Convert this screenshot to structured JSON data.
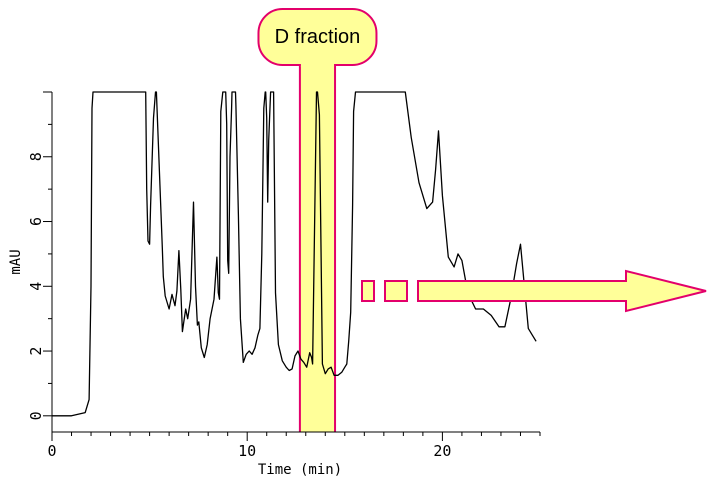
{
  "chart_data": {
    "type": "line",
    "title": "",
    "xlabel": "Time (min)",
    "ylabel": "mAU",
    "xlim": [
      0,
      25
    ],
    "ylim": [
      -0.5,
      10
    ],
    "x_ticks": [
      0,
      10,
      20
    ],
    "y_ticks": [
      0,
      2,
      4,
      6,
      8
    ],
    "x_tick_labels": [
      "0",
      "10",
      "20"
    ],
    "y_tick_labels": [
      "0",
      "2",
      "4",
      "6",
      "8"
    ],
    "grid": false,
    "legend": "none",
    "line_color": "#000000",
    "series": [
      {
        "x": [
          0,
          1.0,
          1.7,
          1.9,
          2.0,
          2.05,
          2.1,
          4.8,
          4.85,
          4.92,
          5.0,
          5.05,
          5.2,
          5.3,
          5.35,
          5.65,
          5.7,
          5.8,
          6.0,
          6.15,
          6.3,
          6.4,
          6.5,
          6.6,
          6.68,
          6.75,
          6.85,
          6.95,
          7.1,
          7.25,
          7.35,
          7.45,
          7.52,
          7.65,
          7.8,
          7.95,
          8.1,
          8.3,
          8.45,
          8.52,
          8.58,
          8.65,
          8.75,
          8.85,
          8.9,
          8.95,
          9.0,
          9.05,
          9.12,
          9.2,
          9.22,
          9.4,
          9.42,
          9.55,
          9.65,
          9.8,
          9.95,
          10.1,
          10.25,
          10.4,
          10.55,
          10.65,
          10.75,
          10.85,
          10.92,
          10.95,
          11.0,
          11.05,
          11.1,
          11.2,
          11.25,
          11.35,
          11.45,
          11.6,
          11.8,
          12.0,
          12.15,
          12.3,
          12.45,
          12.6,
          12.75,
          12.9,
          13.05,
          13.2,
          13.3,
          13.35,
          13.55,
          13.6,
          13.7,
          13.85,
          14.0,
          14.15,
          14.3,
          14.45,
          14.65,
          14.85,
          15.0,
          15.1,
          15.2,
          15.3,
          15.4,
          15.45,
          15.55,
          18.1,
          18.4,
          18.8,
          19.2,
          19.5,
          19.65,
          19.8,
          20.0,
          20.3,
          20.6,
          20.8,
          21.0,
          21.3,
          21.7,
          22.1,
          22.5,
          22.9,
          23.2,
          23.5,
          23.8,
          24.0,
          24.2,
          24.4,
          24.6,
          24.8
        ],
        "y": [
          0,
          0,
          0.1,
          0.5,
          4,
          9.5,
          10,
          10,
          7,
          5.4,
          5.3,
          6.5,
          9.2,
          10,
          10,
          5.2,
          4.3,
          3.7,
          3.3,
          3.75,
          3.4,
          3.85,
          5.1,
          3.9,
          2.6,
          2.9,
          3.3,
          3.0,
          3.6,
          6.6,
          4.0,
          2.8,
          2.9,
          2.1,
          1.8,
          2.2,
          3.0,
          3.6,
          4.9,
          3.8,
          3.6,
          9.4,
          10,
          10,
          10,
          9.0,
          4.8,
          4.4,
          8.0,
          9.5,
          10,
          10,
          9.6,
          6.2,
          3.0,
          1.65,
          1.9,
          2.0,
          1.9,
          2.1,
          2.5,
          2.7,
          5.0,
          9.5,
          10,
          10,
          9.2,
          6.6,
          8.5,
          10,
          10,
          10,
          3.8,
          2.2,
          1.7,
          1.5,
          1.4,
          1.45,
          1.85,
          2.0,
          1.75,
          1.65,
          1.5,
          1.95,
          1.8,
          1.6,
          10,
          10,
          9.3,
          1.6,
          1.3,
          1.45,
          1.5,
          1.25,
          1.25,
          1.35,
          1.5,
          1.6,
          2.3,
          3.2,
          6.5,
          9.4,
          10,
          10,
          8.6,
          7.2,
          6.4,
          6.6,
          7.6,
          8.8,
          6.8,
          4.9,
          4.6,
          5.0,
          4.8,
          3.8,
          3.3,
          3.3,
          3.1,
          2.75,
          2.75,
          3.6,
          4.7,
          5.3,
          4.0,
          2.7,
          2.5,
          2.3
        ]
      }
    ],
    "highlight": {
      "label": "D fraction",
      "x_start": 12.7,
      "x_end": 14.5,
      "fill": "#ffff99",
      "border": "#e3006b"
    },
    "arrow": {
      "fill": "#ffff99",
      "border": "#e3006b"
    }
  }
}
